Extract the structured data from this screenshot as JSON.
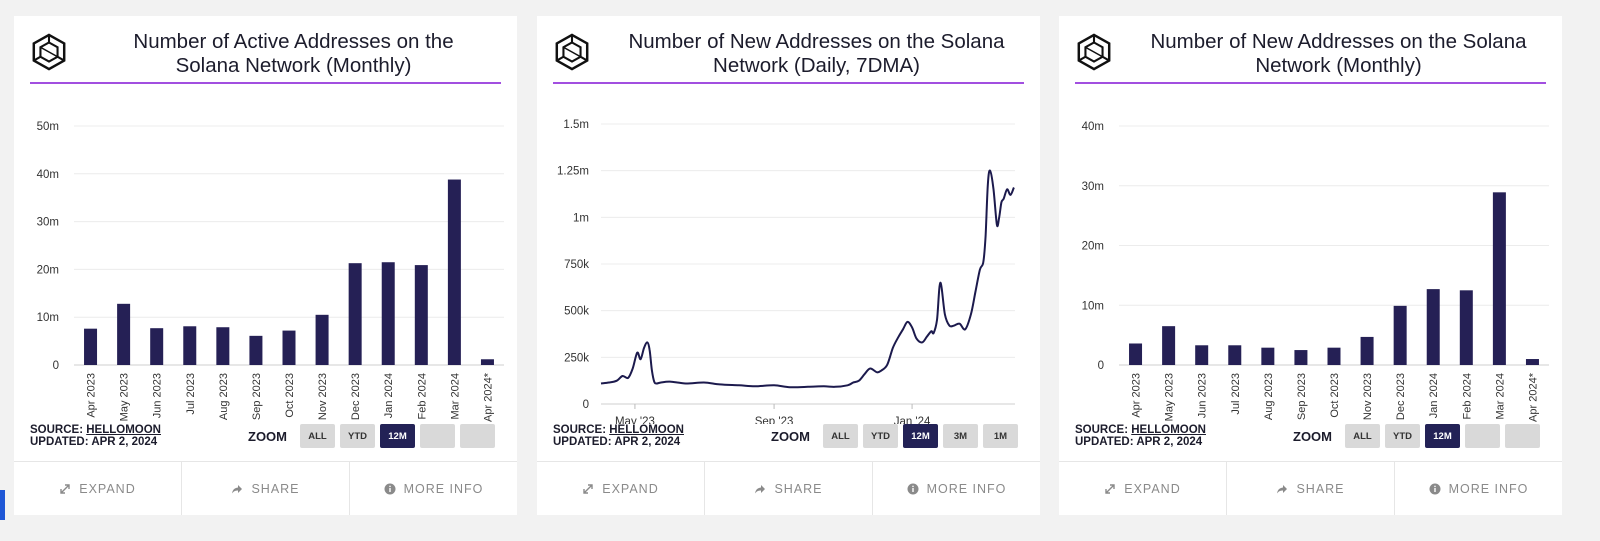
{
  "zoom_label": "ZOOM",
  "colors": {
    "bar": "#252055",
    "line": "#1c1a4d",
    "divider": "#a24fe0",
    "zoom_active": "#232256"
  },
  "cards": [
    {
      "title_line1": "Number of Active Addresses on the",
      "title_line2": "Solana Network (Monthly)",
      "source_label": "SOURCE: ",
      "source_name": "HELLOMOON",
      "updated": "UPDATED: APR 2, 2024",
      "zoom_buttons": [
        "ALL",
        "YTD",
        "12M",
        "",
        ""
      ],
      "zoom_active": 2,
      "footer": [
        "EXPAND",
        "SHARE",
        "MORE INFO"
      ],
      "footer_icons": [
        "expand-icon",
        "share-icon",
        "info-icon"
      ],
      "chart_data": {
        "type": "bar",
        "categories": [
          "Apr 2023",
          "May 2023",
          "Jun 2023",
          "Jul 2023",
          "Aug 2023",
          "Sep 2023",
          "Oct 2023",
          "Nov 2023",
          "Dec 2023",
          "Jan 2024",
          "Feb 2024",
          "Mar 2024",
          "Apr 2024*"
        ],
        "values": [
          7.6,
          12.8,
          7.7,
          8.1,
          7.9,
          6.1,
          7.2,
          10.5,
          21.3,
          21.5,
          20.9,
          38.8,
          1.2
        ],
        "title": "Number of Active Addresses on the Solana Network (Monthly)",
        "ylabel": "",
        "ylim": [
          0,
          50
        ],
        "yticks": [
          0,
          10,
          20,
          30,
          40,
          50
        ],
        "ytick_labels": [
          "0",
          "10m",
          "20m",
          "30m",
          "40m",
          "50m"
        ],
        "grid": true
      }
    },
    {
      "title_line1": "Number of New Addresses on the Solana",
      "title_line2": "Network (Daily, 7DMA)",
      "source_label": "SOURCE: ",
      "source_name": "HELLOMOON",
      "updated": "UPDATED: APR 2, 2024",
      "zoom_buttons": [
        "ALL",
        "YTD",
        "12M",
        "3M",
        "1M"
      ],
      "zoom_active": 2,
      "footer": [
        "EXPAND",
        "SHARE",
        "MORE INFO"
      ],
      "footer_icons": [
        "expand-icon",
        "share-icon",
        "info-icon"
      ],
      "chart_data": {
        "type": "line",
        "title": "Number of New Addresses on the Solana Network (Daily, 7DMA)",
        "x": [
          "2023-04-01",
          "2023-04-08",
          "2023-04-15",
          "2023-04-20",
          "2023-04-25",
          "2023-04-29",
          "2023-05-03",
          "2023-05-06",
          "2023-05-09",
          "2023-05-12",
          "2023-05-14",
          "2023-05-16",
          "2023-05-18",
          "2023-05-20",
          "2023-05-24",
          "2023-06-01",
          "2023-06-15",
          "2023-07-01",
          "2023-07-15",
          "2023-08-01",
          "2023-08-15",
          "2023-09-01",
          "2023-09-15",
          "2023-10-01",
          "2023-10-15",
          "2023-10-25",
          "2023-11-05",
          "2023-11-10",
          "2023-11-15",
          "2023-11-20",
          "2023-11-25",
          "2023-12-01",
          "2023-12-05",
          "2023-12-10",
          "2023-12-15",
          "2023-12-20",
          "2023-12-24",
          "2023-12-28",
          "2024-01-01",
          "2024-01-05",
          "2024-01-10",
          "2024-01-14",
          "2024-01-18",
          "2024-01-20",
          "2024-01-23",
          "2024-01-26",
          "2024-01-30",
          "2024-02-03",
          "2024-02-07",
          "2024-02-12",
          "2024-02-17",
          "2024-02-22",
          "2024-02-26",
          "2024-03-01",
          "2024-03-04",
          "2024-03-06",
          "2024-03-08",
          "2024-03-10",
          "2024-03-13",
          "2024-03-16",
          "2024-03-18",
          "2024-03-20",
          "2024-03-22",
          "2024-03-25",
          "2024-03-28",
          "2024-03-31"
        ],
        "values": [
          110000,
          115000,
          125000,
          150000,
          140000,
          190000,
          275000,
          240000,
          300000,
          330000,
          290000,
          180000,
          120000,
          110000,
          115000,
          120000,
          110000,
          115000,
          105000,
          100000,
          95000,
          100000,
          90000,
          92000,
          95000,
          92000,
          100000,
          115000,
          125000,
          160000,
          190000,
          170000,
          180000,
          210000,
          300000,
          360000,
          400000,
          440000,
          410000,
          350000,
          330000,
          360000,
          390000,
          380000,
          450000,
          650000,
          480000,
          420000,
          420000,
          430000,
          400000,
          480000,
          600000,
          720000,
          760000,
          900000,
          1180000,
          1250000,
          1150000,
          960000,
          1000000,
          1080000,
          1100000,
          1150000,
          1120000,
          1160000
        ],
        "xticks": [
          "2023-05-01",
          "2023-09-01",
          "2024-01-01"
        ],
        "xtick_labels": [
          "May '23",
          "Sep '23",
          "Jan '24"
        ],
        "ylim": [
          0,
          1500000
        ],
        "yticks": [
          0,
          250000,
          500000,
          750000,
          1000000,
          1250000,
          1500000
        ],
        "ytick_labels": [
          "0",
          "250k",
          "500k",
          "750k",
          "1m",
          "1.25m",
          "1.5m"
        ],
        "xlim": [
          "2023-04-01",
          "2024-04-01"
        ],
        "grid": true
      }
    },
    {
      "title_line1": "Number of New Addresses on the Solana",
      "title_line2": "Network (Monthly)",
      "source_label": "SOURCE: ",
      "source_name": "HELLOMOON",
      "updated": "UPDATED: APR 2, 2024",
      "zoom_buttons": [
        "ALL",
        "YTD",
        "12M",
        "",
        ""
      ],
      "zoom_active": 2,
      "footer": [
        "EXPAND",
        "SHARE",
        "MORE INFO"
      ],
      "footer_icons": [
        "expand-icon",
        "share-icon",
        "info-icon"
      ],
      "chart_data": {
        "type": "bar",
        "categories": [
          "Apr 2023",
          "May 2023",
          "Jun 2023",
          "Jul 2023",
          "Aug 2023",
          "Sep 2023",
          "Oct 2023",
          "Nov 2023",
          "Dec 2023",
          "Jan 2024",
          "Feb 2024",
          "Mar 2024",
          "Apr 2024*"
        ],
        "values": [
          3.6,
          6.5,
          3.3,
          3.3,
          2.9,
          2.5,
          2.9,
          4.7,
          9.9,
          12.7,
          12.5,
          28.9,
          1.0
        ],
        "title": "Number of New Addresses on the Solana Network (Monthly)",
        "ylabel": "",
        "ylim": [
          0,
          40
        ],
        "yticks": [
          0,
          10,
          20,
          30,
          40
        ],
        "ytick_labels": [
          "0",
          "10m",
          "20m",
          "30m",
          "40m"
        ],
        "grid": true
      }
    }
  ]
}
